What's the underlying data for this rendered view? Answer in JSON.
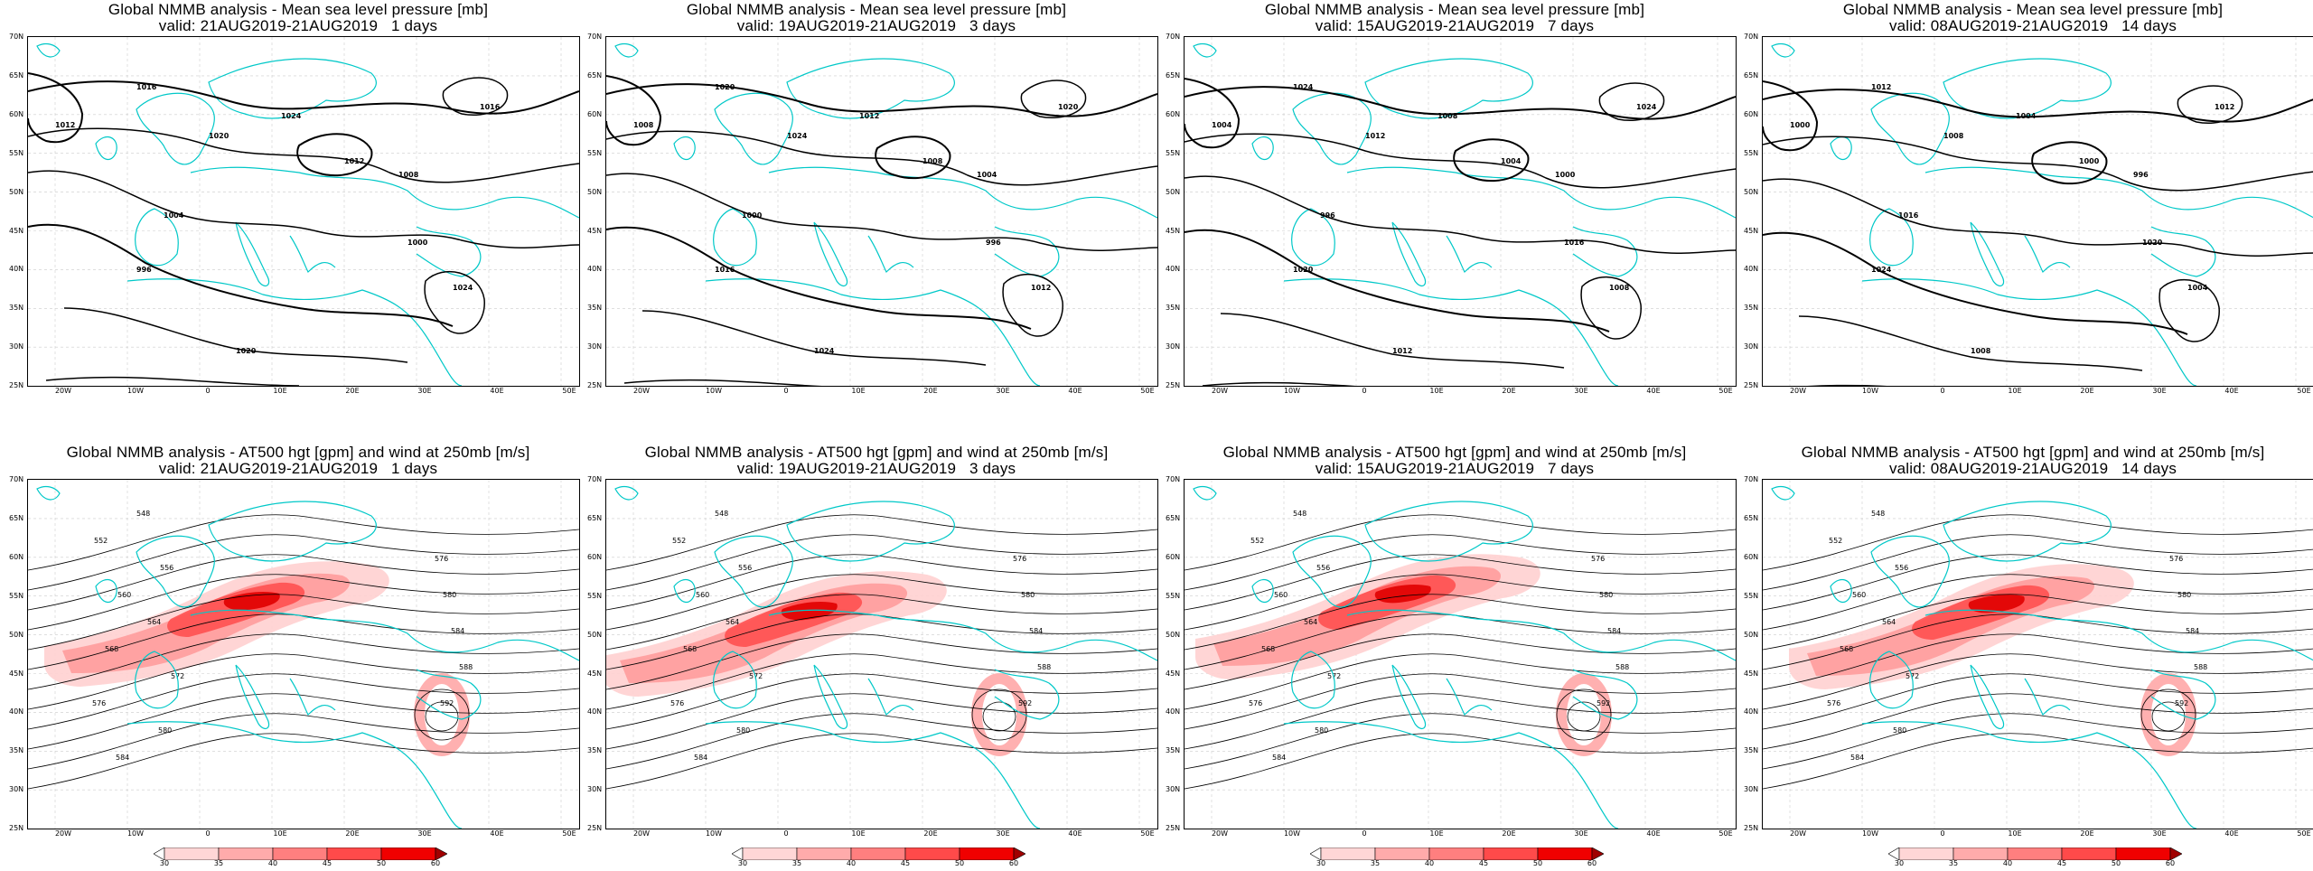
{
  "panels": [
    {
      "id": "mslp-1d",
      "title": "Global NMMB analysis - Mean sea level pressure [mb]",
      "subtitle": "valid: 21AUG2019-21AUG2019   1 days",
      "kind": "mslp"
    },
    {
      "id": "mslp-3d",
      "title": "Global NMMB analysis - Mean sea level pressure [mb]",
      "subtitle": "valid: 19AUG2019-21AUG2019   3 days",
      "kind": "mslp"
    },
    {
      "id": "mslp-7d",
      "title": "Global NMMB analysis - Mean sea level pressure [mb]",
      "subtitle": "valid: 15AUG2019-21AUG2019   7 days",
      "kind": "mslp"
    },
    {
      "id": "mslp-14d",
      "title": "Global NMMB analysis - Mean sea level pressure [mb]",
      "subtitle": "valid: 08AUG2019-21AUG2019   14 days",
      "kind": "mslp"
    },
    {
      "id": "z500-1d",
      "title": "Global NMMB analysis - AT500 hgt [gpm] and wind at 250mb [m/s]",
      "subtitle": "valid: 21AUG2019-21AUG2019   1 days",
      "kind": "z500"
    },
    {
      "id": "z500-3d",
      "title": "Global NMMB analysis - AT500 hgt [gpm] and wind at 250mb [m/s]",
      "subtitle": "valid: 19AUG2019-21AUG2019   3 days",
      "kind": "z500"
    },
    {
      "id": "z500-7d",
      "title": "Global NMMB analysis - AT500 hgt [gpm] and wind at 250mb [m/s]",
      "subtitle": "valid: 15AUG2019-21AUG2019   7 days",
      "kind": "z500"
    },
    {
      "id": "z500-14d",
      "title": "Global NMMB analysis - AT500 hgt [gpm] and wind at 250mb [m/s]",
      "subtitle": "valid: 08AUG2019-21AUG2019   14 days",
      "kind": "z500"
    }
  ],
  "lat_labels": [
    "70N",
    "65N",
    "60N",
    "55N",
    "50N",
    "45N",
    "40N",
    "35N",
    "30N",
    "25N"
  ],
  "lon_labels": [
    "20W",
    "10W",
    "0",
    "10E",
    "20E",
    "30E",
    "40E",
    "50E"
  ],
  "colorbar": {
    "ticks": [
      "30",
      "35",
      "40",
      "45",
      "50",
      "60"
    ],
    "colors": [
      "#ffffff",
      "#ffd6d6",
      "#ffabab",
      "#ff7f7f",
      "#ff4a4a",
      "#f00000",
      "#a00000"
    ]
  },
  "mslp_labels": [
    "1016",
    "1020",
    "1024",
    "1012",
    "1008",
    "1004",
    "1000",
    "996"
  ],
  "z500_labels": [
    "548",
    "552",
    "556",
    "560",
    "564",
    "568",
    "572",
    "576",
    "580",
    "584",
    "588",
    "592"
  ],
  "colors": {
    "coast": "#00c8c8",
    "contour": "#000000",
    "jet": "#ff0000"
  }
}
